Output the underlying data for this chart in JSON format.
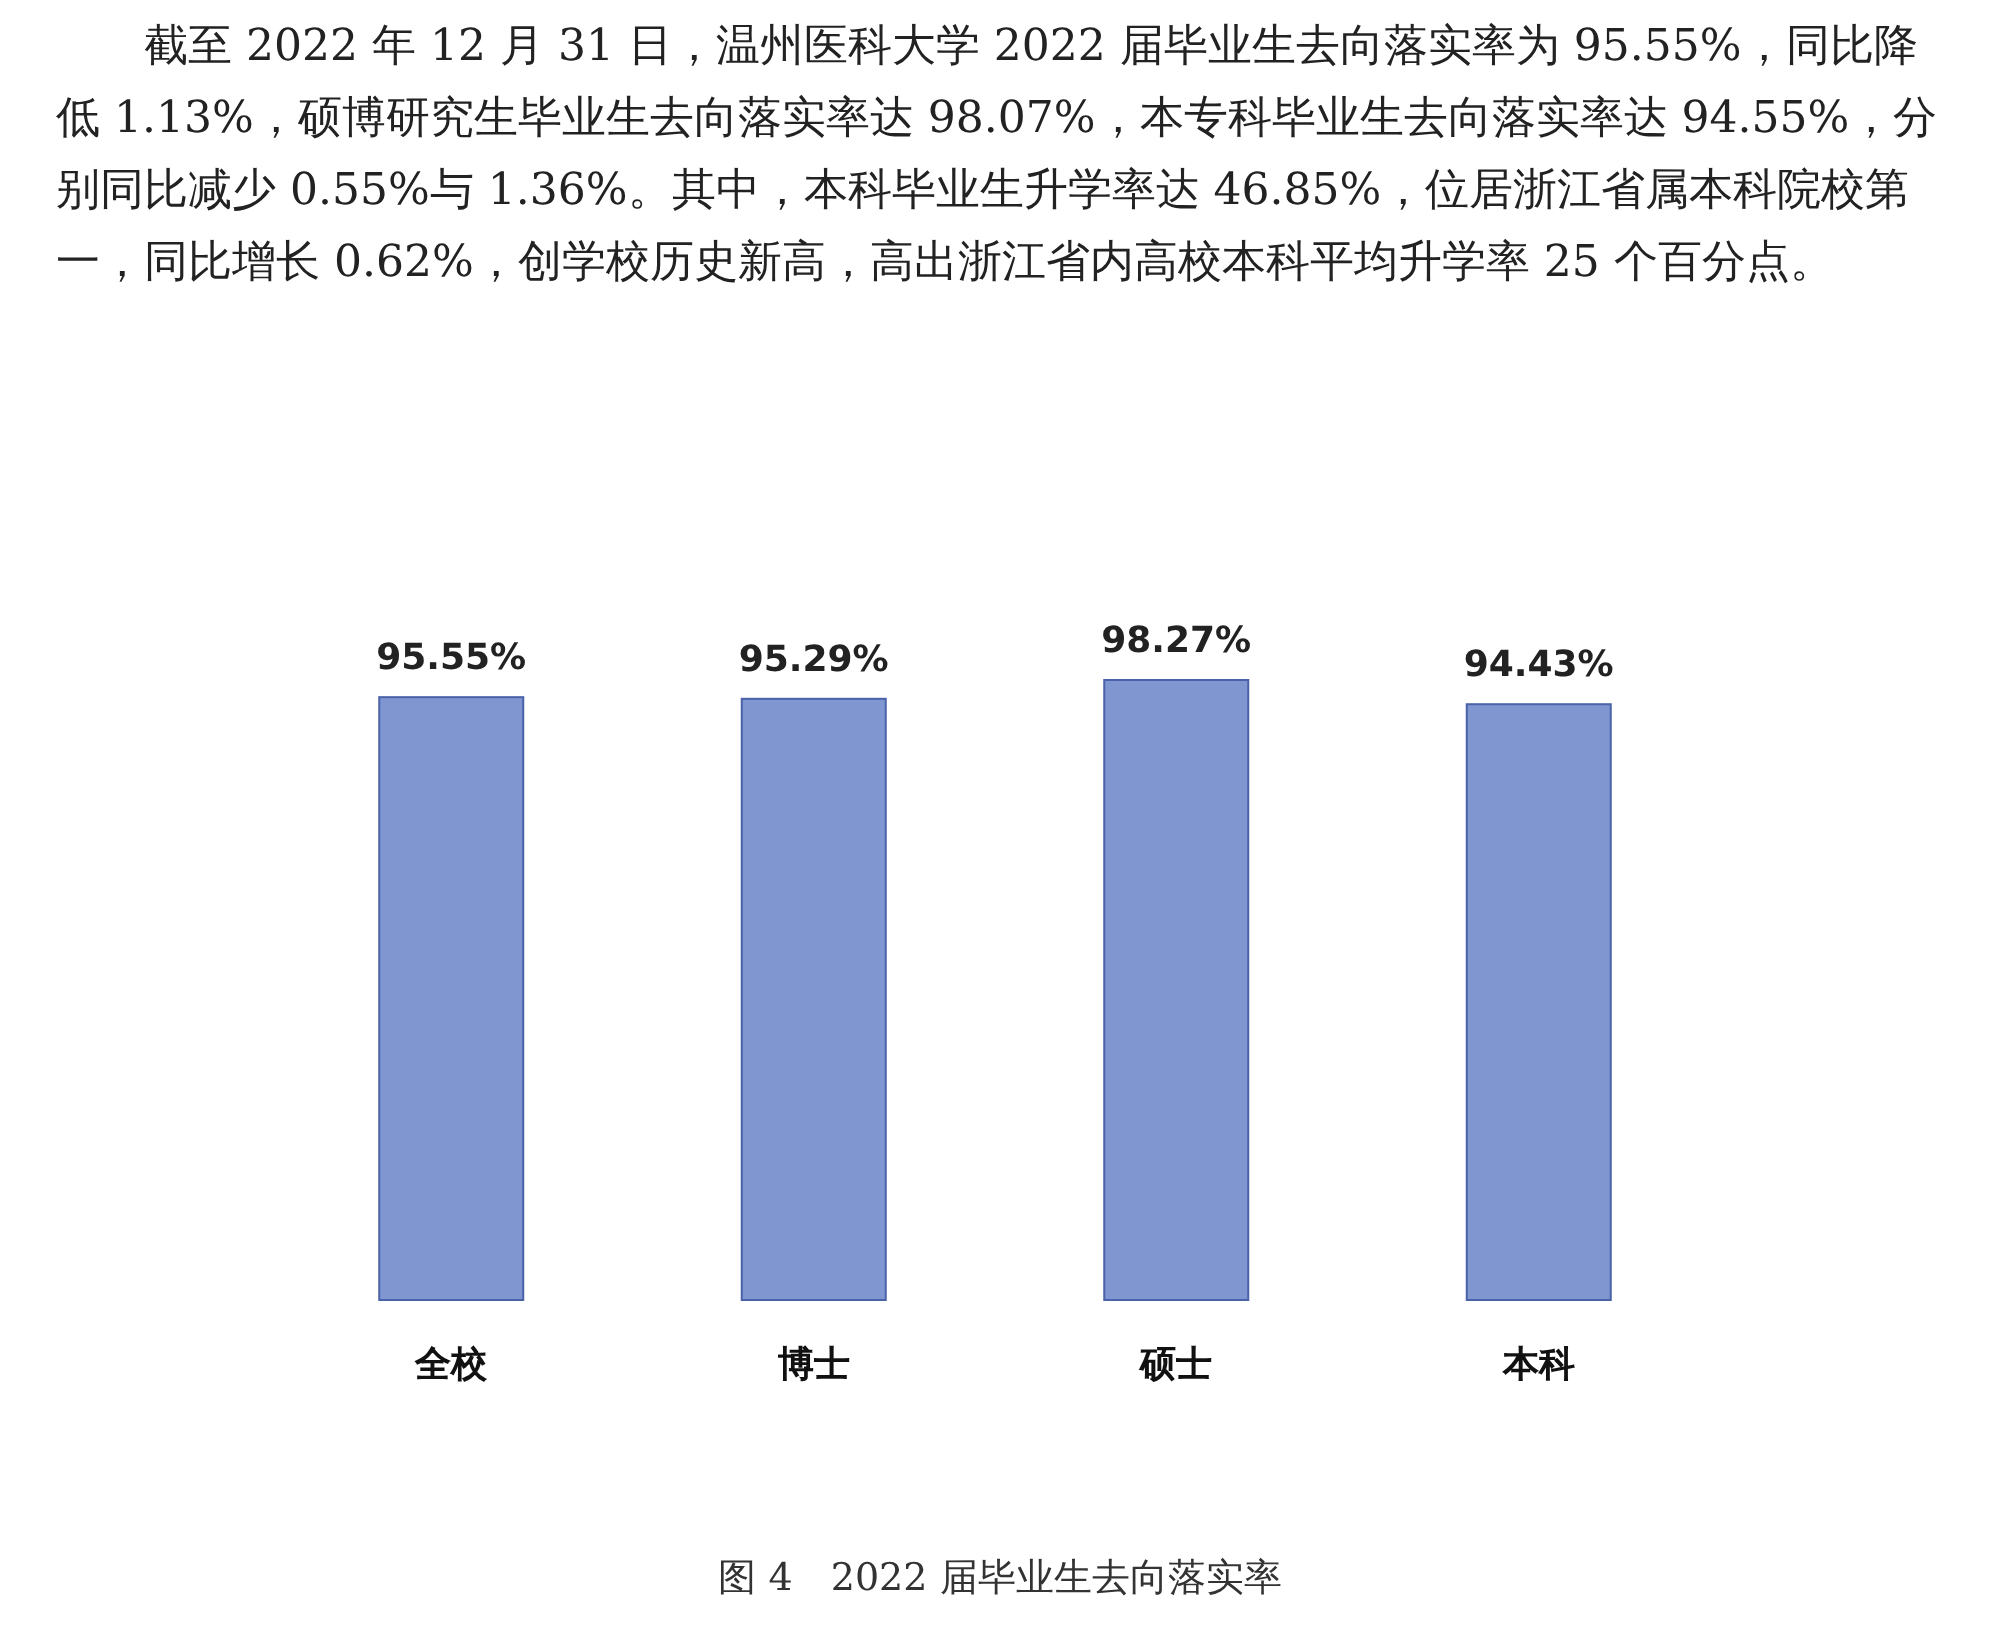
{
  "chart_data": {
    "type": "bar",
    "title": "图 4　2022 届毕业生去向落实率",
    "annotations": [
      "截至 2022 年 12 月 31 日，温州医科大学 2022 届毕业生去向落实率为 95.55%，同比降低 1.13%，硕博研究生毕业生去向落实率达 98.07%，本专科毕业生去向落实率达 94.55%，分别同比减少 0.55%与 1.36%。其中，本科毕业生升学率达 46.85%，位居浙江省属本科院校第一，同比增长 0.62%，创学校历史新高，高出浙江省内高校本科平均升学率 25 个百分点。"
    ],
    "categories": [
      "全校",
      "博士",
      "硕士",
      "本科"
    ],
    "values": [
      95.55,
      95.29,
      98.27,
      94.43
    ],
    "value_labels": [
      "95.55%",
      "95.29%",
      "98.27%",
      "94.43%"
    ],
    "color": "#7f96d0",
    "tick_labels": "x"
  }
}
